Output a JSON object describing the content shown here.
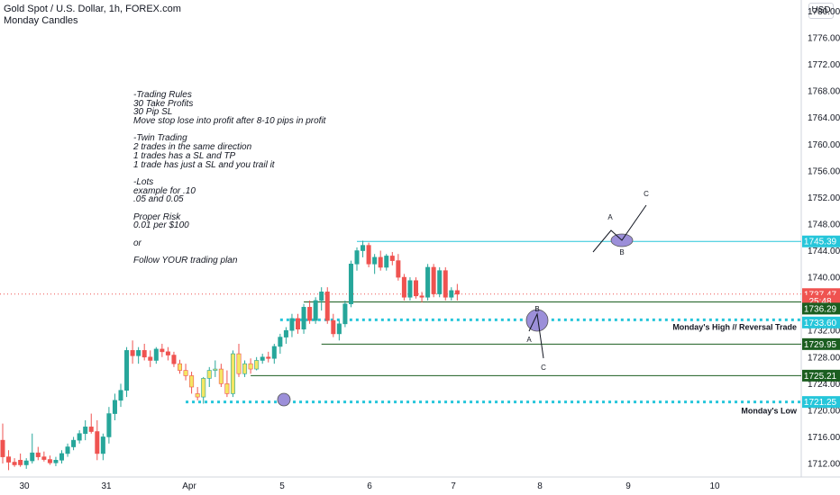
{
  "header": {
    "title": "Gold Spot / U.S. Dollar, 1h, FOREX.com",
    "subtitle": "Monday Candles"
  },
  "currency_button": "USD",
  "notes": [
    "-Trading Rules",
    "30 Take Profits",
    "30 Pip SL",
    "Move stop lose into profit after 8-10 pips in profit",
    "",
    "-Twin Trading",
    "2 trades in the same direction",
    "1 trades has a SL and TP",
    "1 trade has just a SL and you trail it",
    "",
    "-Lots",
    "example for .10",
    ".05 and 0.05",
    "",
    "Proper Risk",
    "0.01 per $100",
    "",
    "or",
    "",
    "Follow YOUR trading plan"
  ],
  "colors": {
    "up": "#26a69a",
    "down": "#ef5350",
    "monday": "#f5e663",
    "dark_green": "#1b5e20",
    "cyan": "#26c6da",
    "price": "#ef5350",
    "ellipse": "#9c8fd9"
  },
  "chart_data": {
    "type": "candlestick",
    "title": "Gold Spot / U.S. Dollar, 1h, FOREX.com",
    "x_tick_labels": [
      "30",
      "31",
      "Apr",
      "5",
      "6",
      "7",
      "8",
      "9",
      "10"
    ],
    "ylim": [
      1710,
      1781
    ],
    "y_tick_labels": [
      "1712.00",
      "1716.00",
      "1720.00",
      "1724.00",
      "1728.00",
      "1732.00",
      "1736.00",
      "1740.00",
      "1744.00",
      "1748.00",
      "1752.00",
      "1756.00",
      "1760.00",
      "1764.00",
      "1768.00",
      "1772.00",
      "1776.00",
      "1780.00"
    ],
    "candles": [
      [
        1715.5,
        1718,
        1712,
        1713
      ],
      [
        1713,
        1714,
        1711,
        1712.2
      ],
      [
        1712.2,
        1712.8,
        1711.5,
        1711.8
      ],
      [
        1712.5,
        1713.5,
        1711.5,
        1711.8
      ],
      [
        1711.8,
        1712.8,
        1711.2,
        1712.4
      ],
      [
        1712.4,
        1716.5,
        1712,
        1713.6
      ],
      [
        1713.6,
        1714.5,
        1712.5,
        1713.0
      ],
      [
        1713.0,
        1713.8,
        1712.3,
        1712.6
      ],
      [
        1712.6,
        1713.2,
        1711.8,
        1712.1
      ],
      [
        1712.1,
        1713.0,
        1711.6,
        1712.5
      ],
      [
        1712.5,
        1714.0,
        1712.0,
        1713.5
      ],
      [
        1713.5,
        1715.0,
        1713.0,
        1714.5
      ],
      [
        1714.5,
        1716.0,
        1714.0,
        1715.5
      ],
      [
        1715.5,
        1717.0,
        1715.0,
        1716.5
      ],
      [
        1716.5,
        1718.5,
        1715.5,
        1717.5
      ],
      [
        1717.5,
        1719.5,
        1716.5,
        1716.8
      ],
      [
        1716.8,
        1718.5,
        1712.5,
        1713.5
      ],
      [
        1713.5,
        1716.5,
        1712.5,
        1716.0
      ],
      [
        1716.0,
        1720.5,
        1715.0,
        1719.5
      ],
      [
        1719.5,
        1722.5,
        1718.5,
        1721.5
      ],
      [
        1721.5,
        1724.0,
        1720.5,
        1723.0
      ],
      [
        1723.0,
        1729.5,
        1722.0,
        1729.0
      ],
      [
        1729.0,
        1730.5,
        1727.0,
        1728.2
      ],
      [
        1728.2,
        1729.5,
        1727.0,
        1729.0
      ],
      [
        1729.0,
        1730.0,
        1727.5,
        1728.0
      ],
      [
        1728.0,
        1729.0,
        1726.5,
        1727.5
      ],
      [
        1727.5,
        1729.5,
        1727.0,
        1729.2
      ],
      [
        1729.2,
        1730.0,
        1728.0,
        1728.8
      ],
      [
        1728.8,
        1729.5,
        1727.5,
        1728.3
      ],
      [
        1728.3,
        1728.8,
        1726.5,
        1727.0
      ],
      [
        1727.0,
        1727.6,
        1725.5,
        1726.0
      ],
      [
        1726.0,
        1727.0,
        1724.5,
        1725.2
      ],
      [
        1725.2,
        1725.8,
        1722.5,
        1723.5
      ],
      [
        1722.5,
        1723.5,
        1721.5,
        1722.0
      ],
      [
        1722.0,
        1725.0,
        1721.0,
        1724.8
      ],
      [
        1724.8,
        1726.5,
        1723.5,
        1726.0
      ],
      [
        1726.0,
        1727.5,
        1725.0,
        1726.2
      ],
      [
        1726.2,
        1727.0,
        1723.5,
        1724.0
      ],
      [
        1724.0,
        1726.0,
        1722.0,
        1722.5
      ],
      [
        1722.5,
        1729.0,
        1722.0,
        1728.5
      ],
      [
        1728.5,
        1730.0,
        1725.0,
        1725.5
      ],
      [
        1725.5,
        1727.5,
        1725.0,
        1727.0
      ],
      [
        1727.0,
        1727.8,
        1725.5,
        1726.2
      ],
      [
        1726.2,
        1728.0,
        1726.0,
        1727.5
      ],
      [
        1727.5,
        1728.5,
        1727.0,
        1728.0
      ],
      [
        1728.0,
        1728.8,
        1727.2,
        1727.8
      ],
      [
        1727.8,
        1730.0,
        1727.0,
        1729.6
      ],
      [
        1729.6,
        1731.5,
        1728.5,
        1731.0
      ],
      [
        1731.0,
        1732.5,
        1730.0,
        1732.0
      ],
      [
        1732.0,
        1734.5,
        1731.0,
        1733.8
      ],
      [
        1733.8,
        1734.5,
        1731.5,
        1732.2
      ],
      [
        1732.2,
        1736.0,
        1731.5,
        1735.5
      ],
      [
        1735.5,
        1736.5,
        1733.0,
        1733.5
      ],
      [
        1733.5,
        1737.0,
        1733.0,
        1736.5
      ],
      [
        1736.5,
        1738.5,
        1735.0,
        1737.8
      ],
      [
        1737.8,
        1738.5,
        1733.0,
        1733.5
      ],
      [
        1733.5,
        1734.5,
        1731.0,
        1731.5
      ],
      [
        1731.5,
        1733.5,
        1730.5,
        1733.0
      ],
      [
        1733.0,
        1736.5,
        1732.5,
        1736.0
      ],
      [
        1736.0,
        1742.5,
        1735.5,
        1742.0
      ],
      [
        1742.0,
        1744.5,
        1741.0,
        1744.0
      ],
      [
        1744.0,
        1745.5,
        1743.0,
        1744.8
      ],
      [
        1744.8,
        1745.2,
        1741.5,
        1742.0
      ],
      [
        1742.0,
        1743.5,
        1740.5,
        1743.0
      ],
      [
        1743.0,
        1744.0,
        1741.0,
        1741.5
      ],
      [
        1741.5,
        1743.5,
        1741.0,
        1743.2
      ],
      [
        1743.2,
        1743.8,
        1741.8,
        1742.5
      ],
      [
        1742.5,
        1743.5,
        1739.5,
        1740.0
      ],
      [
        1740.0,
        1740.5,
        1736.5,
        1737.0
      ],
      [
        1737.0,
        1740.0,
        1736.5,
        1739.5
      ],
      [
        1739.5,
        1740.0,
        1736.8,
        1737.2
      ],
      [
        1737.2,
        1737.8,
        1736.2,
        1737.0
      ],
      [
        1737.0,
        1742.0,
        1736.5,
        1741.5
      ],
      [
        1741.5,
        1742.0,
        1737.0,
        1737.5
      ],
      [
        1737.5,
        1741.5,
        1737.0,
        1741.0
      ],
      [
        1741.0,
        1741.5,
        1736.5,
        1737.0
      ],
      [
        1737.0,
        1738.5,
        1736.5,
        1738.0
      ],
      [
        1738.0,
        1739.0,
        1736.5,
        1737.47
      ]
    ],
    "monday_indices": [
      30,
      31,
      32,
      33,
      34,
      35,
      36,
      37,
      38,
      39,
      40,
      41,
      42,
      43
    ],
    "price_tags": [
      {
        "label": "1745.39",
        "value": 1745.39,
        "color": "#26c6da"
      },
      {
        "label": "1737.47",
        "value": 1737.47,
        "color": "#ef5350"
      },
      {
        "label": "25:48",
        "value": 1736.45,
        "color": "#ef5350"
      },
      {
        "label": "1736.29",
        "value": 1735.29,
        "color": "#1b5e20"
      },
      {
        "label": "1733.60",
        "value": 1733.2,
        "color": "#26c6da"
      },
      {
        "label": "1729.95",
        "value": 1729.95,
        "color": "#1b5e20"
      },
      {
        "label": "1725.21",
        "value": 1725.21,
        "color": "#1b5e20"
      },
      {
        "label": "1721.25",
        "value": 1721.25,
        "color": "#26c6da"
      }
    ],
    "levels": [
      {
        "value": 1745.39,
        "color": "#26c6da",
        "from_index": 60,
        "style": "solid"
      },
      {
        "value": 1736.29,
        "color": "#1b5e20",
        "from_index": 51,
        "style": "solid"
      },
      {
        "value": 1733.6,
        "color": "#26c6da",
        "from_index": 47,
        "style": "dotted"
      },
      {
        "value": 1729.95,
        "color": "#1b5e20",
        "from_index": 54,
        "style": "solid"
      },
      {
        "value": 1725.21,
        "color": "#1b5e20",
        "from_index": 42,
        "style": "solid"
      },
      {
        "value": 1721.25,
        "color": "#26c6da",
        "from_index": 31,
        "style": "dotted"
      }
    ],
    "level_labels": [
      {
        "text": "Monday's High // Reversal Trade",
        "value": 1733.6
      },
      {
        "text": "Monday's Low",
        "value": 1721.25
      }
    ],
    "current_price": 1737.47,
    "annotations": [
      "A",
      "B",
      "C",
      "B",
      "A",
      "C"
    ]
  }
}
